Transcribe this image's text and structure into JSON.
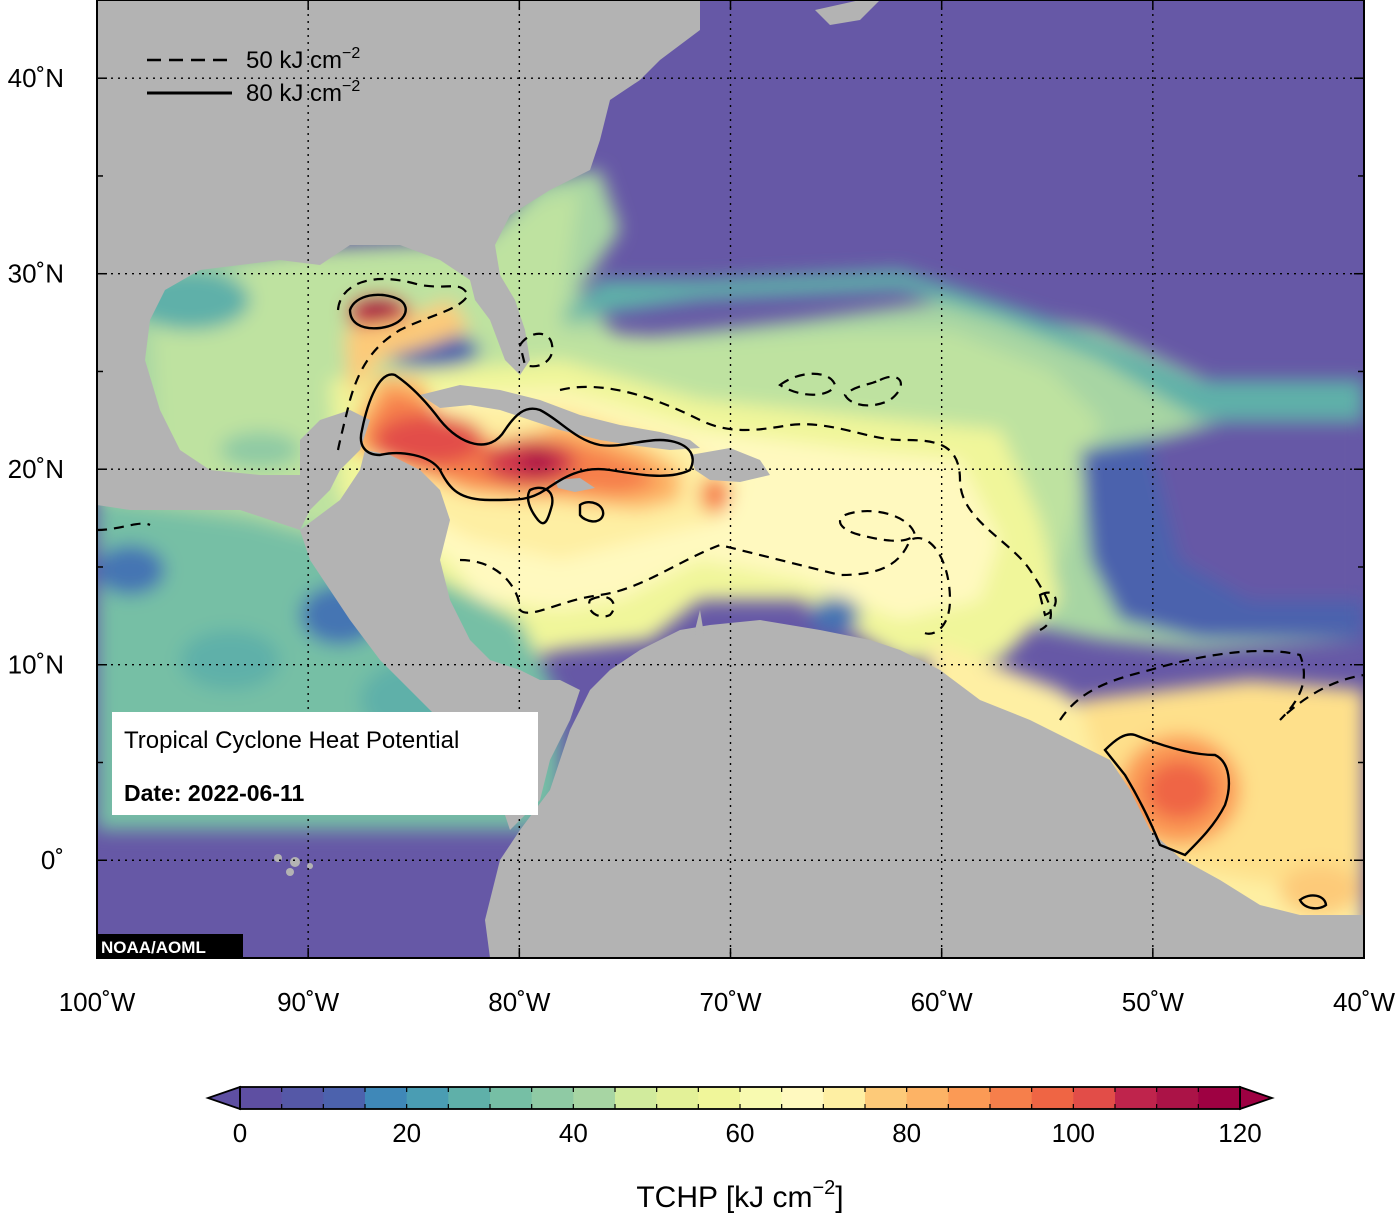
{
  "map": {
    "title": "Tropical Cyclone Heat Potential",
    "date_text": "Date: 2022-06-11",
    "credit": "NOAA/AOML",
    "lon_range": [
      -100,
      -40
    ],
    "lat_range": [
      -5,
      44
    ],
    "lon_ticks": [
      {
        "value": -100,
        "label": "100˚W"
      },
      {
        "value": -90,
        "label": "90˚W"
      },
      {
        "value": -80,
        "label": "80˚W"
      },
      {
        "value": -70,
        "label": "70˚W"
      },
      {
        "value": -60,
        "label": "60˚W"
      },
      {
        "value": -50,
        "label": "50˚W"
      },
      {
        "value": -40,
        "label": "40˚W"
      }
    ],
    "lat_ticks": [
      {
        "value": 40,
        "label": "40˚N"
      },
      {
        "value": 30,
        "label": "30˚N"
      },
      {
        "value": 20,
        "label": "20˚N"
      },
      {
        "value": 10,
        "label": "10˚N"
      },
      {
        "value": 0,
        "label": "0˚"
      }
    ],
    "grid": "dotted",
    "land_color": "#b3b3b3",
    "legend": {
      "placement": "top-left",
      "items": [
        {
          "style": "dashed",
          "value_text": "50 kJ cm",
          "exponent": "−2"
        },
        {
          "style": "solid",
          "value_text": "80 kJ cm",
          "exponent": "−2"
        }
      ]
    }
  },
  "colorbar": {
    "label_main": "TCHP [kJ cm",
    "label_exponent": "−2",
    "label_end": "]",
    "range": [
      0,
      120
    ],
    "step": 5,
    "tick_labels": [
      "0",
      "20",
      "40",
      "60",
      "80",
      "100",
      "120"
    ],
    "colors": [
      "#5e4fa2",
      "#5558a7",
      "#4c62ad",
      "#4574b3",
      "#3f88b8",
      "#4a9db3",
      "#5fb0a9",
      "#76bfa5",
      "#8fcaa4",
      "#a7d5a3",
      "#bee2a0",
      "#d1eb9d",
      "#e3f198",
      "#f0f69a",
      "#f8fab0",
      "#fff9bf",
      "#feefa3",
      "#fee08b",
      "#fdca79",
      "#fdb365",
      "#fb9a55",
      "#f67f4b",
      "#ef6544",
      "#e24d48",
      "#d1384b",
      "#bf244c",
      "#ab1347",
      "#9e0142"
    ]
  }
}
